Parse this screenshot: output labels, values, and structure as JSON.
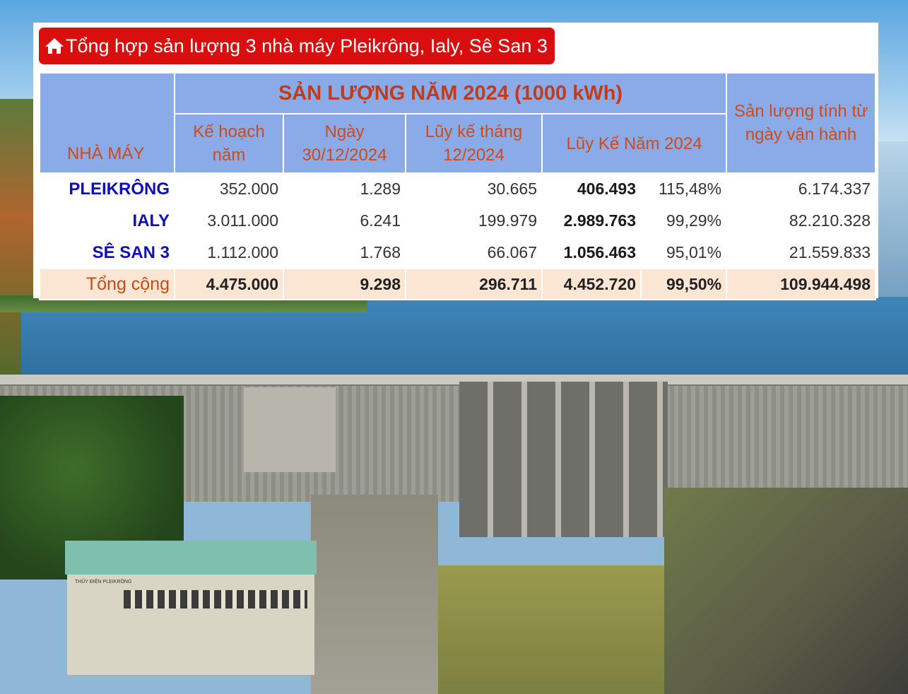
{
  "title": "Tổng hợp sản lượng 3 nhà máy Pleikrông, Ialy, Sê San 3",
  "table": {
    "col_plant": "NHÀ MÁY",
    "group_header": "SẢN LƯỢNG NĂM 2024 (1000 kWh)",
    "col_plan": "Kế hoạch năm",
    "col_day": "Ngày 30/12/2024",
    "col_month": "Lũy kế tháng 12/2024",
    "col_year": "Lũy Kế Năm 2024",
    "col_total_since": "Sản lượng tính từ ngày vận hành",
    "rows": [
      {
        "name": "PLEIKRÔNG",
        "plan": "352.000",
        "day": "1.289",
        "month": "30.665",
        "year": "406.493",
        "pct": "115,48%",
        "since": "6.174.337"
      },
      {
        "name": "IALY",
        "plan": "3.011.000",
        "day": "6.241",
        "month": "199.979",
        "year": "2.989.763",
        "pct": "99,29%",
        "since": "82.210.328"
      },
      {
        "name": "SÊ SAN 3",
        "plan": "1.112.000",
        "day": "1.768",
        "month": "66.067",
        "year": "1.056.463",
        "pct": "95,01%",
        "since": "21.559.833"
      }
    ],
    "total": {
      "name": "Tổng cộng",
      "plan": "4.475.000",
      "day": "9.298",
      "month": "296.711",
      "year": "4.452.720",
      "pct": "99,50%",
      "since": "109.944.498"
    }
  },
  "photo": {
    "building_sign": "THỦY ĐIỆN PLEIKRÔNG"
  },
  "colors": {
    "badge": "#d90f0f",
    "header_bg": "#8aabe8",
    "header_text": "#cf4a18",
    "plant_name": "#1010b0",
    "total_bg": "#fae6d3"
  }
}
